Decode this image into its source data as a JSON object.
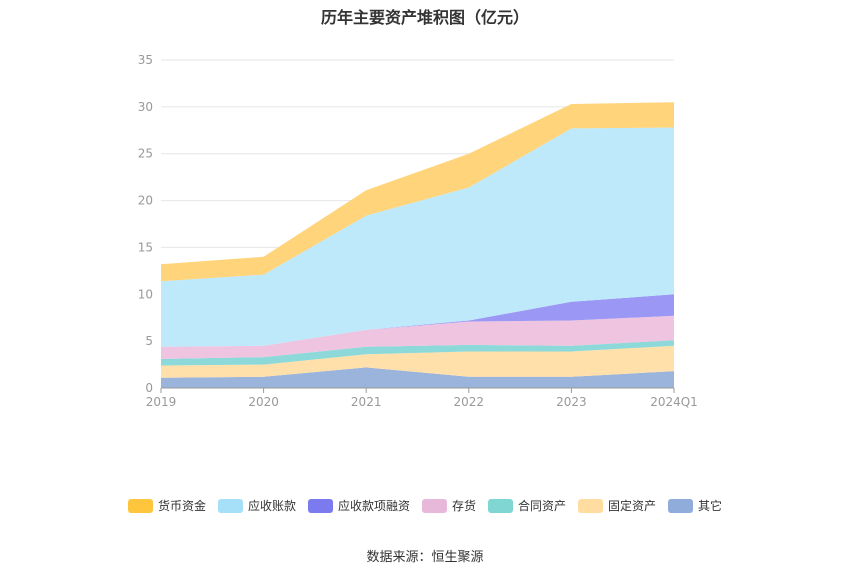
{
  "chart_data": {
    "type": "area",
    "stacked": true,
    "title": "历年主要资产堆积图（亿元）",
    "categories": [
      "2019",
      "2020",
      "2021",
      "2022",
      "2023",
      "2024Q1"
    ],
    "ylim": [
      0,
      35
    ],
    "yticks": [
      0,
      5,
      10,
      15,
      20,
      25,
      30,
      35
    ],
    "grid": true,
    "legend_position": "bottom",
    "series": [
      {
        "name": "其它",
        "color": "#9bb4dc",
        "values": [
          1.1,
          1.2,
          2.2,
          1.2,
          1.2,
          1.8
        ]
      },
      {
        "name": "固定资产",
        "color": "#ffe0aa",
        "values": [
          1.3,
          1.3,
          1.4,
          2.7,
          2.7,
          2.7
        ]
      },
      {
        "name": "合同资产",
        "color": "#8dd9d9",
        "values": [
          0.7,
          0.8,
          0.8,
          0.7,
          0.6,
          0.6
        ]
      },
      {
        "name": "存货",
        "color": "#eec4e0",
        "values": [
          1.3,
          1.2,
          1.8,
          2.5,
          2.7,
          2.6
        ]
      },
      {
        "name": "应收款项融资",
        "color": "#9a98f4",
        "values": [
          0.0,
          0.0,
          0.0,
          0.1,
          2.0,
          2.3
        ]
      },
      {
        "name": "应收账款",
        "color": "#bde9fb",
        "values": [
          7.0,
          7.6,
          12.2,
          14.2,
          18.5,
          17.8
        ]
      },
      {
        "name": "货币资金",
        "color": "#ffd47a",
        "values": [
          1.8,
          1.9,
          2.7,
          3.6,
          2.6,
          2.7
        ]
      }
    ]
  },
  "legend": [
    {
      "name": "货币资金",
      "color": "#ffc53d"
    },
    {
      "name": "应收账款",
      "color": "#a6dff8"
    },
    {
      "name": "应收款项融资",
      "color": "#7b7bef"
    },
    {
      "name": "存货",
      "color": "#e8b8da"
    },
    {
      "name": "合同资产",
      "color": "#7fd6d2"
    },
    {
      "name": "固定资产",
      "color": "#ffdca0"
    },
    {
      "name": "其它",
      "color": "#8facda"
    }
  ],
  "source": "数据来源：恒生聚源"
}
